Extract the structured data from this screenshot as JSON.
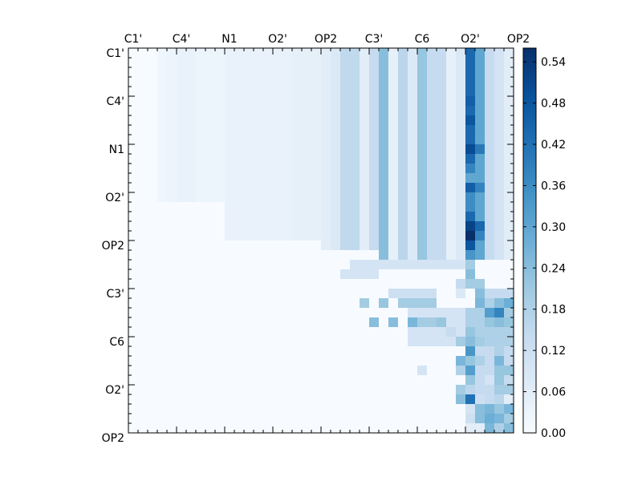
{
  "chart_data": {
    "type": "heatmap",
    "title": "",
    "xlabel": "",
    "ylabel": "",
    "colormap": "Blues",
    "n_rows": 40,
    "n_cols": 40,
    "row_tick_labels": [
      "C1'",
      "C4'",
      "N1",
      "O2'",
      "OP2",
      "C3'",
      "C6",
      "O2'",
      "OP2"
    ],
    "col_tick_labels": [
      "C1'",
      "C4'",
      "N1",
      "O2'",
      "OP2",
      "C3'",
      "C6",
      "O2'",
      "OP2"
    ],
    "colorbar": {
      "min": 0.0,
      "max": 0.56,
      "tick_values": [
        0.0,
        0.06,
        0.12,
        0.18,
        0.24,
        0.3,
        0.36,
        0.42,
        0.48,
        0.54
      ],
      "tick_labels": [
        "0.00",
        "0.06",
        "0.12",
        "0.18",
        "0.24",
        "0.30",
        "0.36",
        "0.42",
        "0.48",
        "0.54"
      ]
    },
    "blocks": [
      {
        "r": [
          0,
          16
        ],
        "c": [
          3,
          4
        ],
        "v": 0.02
      },
      {
        "r": [
          0,
          16
        ],
        "c": [
          4,
          5
        ],
        "v": 0.03
      },
      {
        "r": [
          0,
          16
        ],
        "c": [
          5,
          7
        ],
        "v": 0.04
      },
      {
        "r": [
          0,
          16
        ],
        "c": [
          7,
          10
        ],
        "v": 0.03
      },
      {
        "r": [
          0,
          20
        ],
        "c": [
          10,
          17
        ],
        "v": 0.04
      },
      {
        "r": [
          0,
          20
        ],
        "c": [
          17,
          20
        ],
        "v": 0.05
      },
      {
        "r": [
          0,
          21
        ],
        "c": [
          20,
          21
        ],
        "v": 0.06
      },
      {
        "r": [
          0,
          21
        ],
        "c": [
          21,
          22
        ],
        "v": 0.08
      },
      {
        "r": [
          0,
          21
        ],
        "c": [
          22,
          24
        ],
        "v": 0.15
      },
      {
        "r": [
          0,
          21
        ],
        "c": [
          24,
          25
        ],
        "v": 0.06
      },
      {
        "r": [
          0,
          21
        ],
        "c": [
          25,
          26
        ],
        "v": 0.14
      },
      {
        "r": [
          0,
          22
        ],
        "c": [
          26,
          27
        ],
        "v": 0.24
      },
      {
        "r": [
          0,
          22
        ],
        "c": [
          27,
          28
        ],
        "v": 0.05
      },
      {
        "r": [
          0,
          22
        ],
        "c": [
          28,
          29
        ],
        "v": 0.16
      },
      {
        "r": [
          0,
          22
        ],
        "c": [
          29,
          30
        ],
        "v": 0.08
      },
      {
        "r": [
          0,
          22
        ],
        "c": [
          30,
          31
        ],
        "v": 0.22
      },
      {
        "r": [
          0,
          22
        ],
        "c": [
          31,
          33
        ],
        "v": 0.14
      },
      {
        "r": [
          0,
          22
        ],
        "c": [
          33,
          34
        ],
        "v": 0.05
      },
      {
        "r": [
          0,
          22
        ],
        "c": [
          34,
          35
        ],
        "v": 0.08
      },
      {
        "r": [
          0,
          22
        ],
        "c": [
          35,
          36
        ],
        "v": 0.44
      },
      {
        "r": [
          0,
          22
        ],
        "c": [
          36,
          37
        ],
        "v": 0.3
      },
      {
        "r": [
          0,
          22
        ],
        "c": [
          37,
          38
        ],
        "v": 0.14
      },
      {
        "r": [
          0,
          22
        ],
        "c": [
          38,
          39
        ],
        "v": 0.1
      },
      {
        "r": [
          0,
          22
        ],
        "c": [
          39,
          40
        ],
        "v": 0.06
      },
      {
        "r": [
          22,
          23
        ],
        "c": [
          23,
          35
        ],
        "v": 0.1
      },
      {
        "r": [
          23,
          24
        ],
        "c": [
          22,
          26
        ],
        "v": 0.1
      },
      {
        "r": [
          25,
          26
        ],
        "c": [
          27,
          32
        ],
        "v": 0.12
      },
      {
        "r": [
          25,
          26
        ],
        "c": [
          36,
          40
        ],
        "v": 0.14
      },
      {
        "r": [
          26,
          27
        ],
        "c": [
          24,
          25
        ],
        "v": 0.2
      },
      {
        "r": [
          26,
          27
        ],
        "c": [
          26,
          27
        ],
        "v": 0.22
      },
      {
        "r": [
          26,
          27
        ],
        "c": [
          28,
          32
        ],
        "v": 0.2
      },
      {
        "r": [
          26,
          27
        ],
        "c": [
          37,
          40
        ],
        "v": 0.28
      },
      {
        "r": [
          27,
          31
        ],
        "c": [
          29,
          35
        ],
        "v": 0.1
      },
      {
        "r": [
          27,
          31
        ],
        "c": [
          35,
          40
        ],
        "v": 0.18
      },
      {
        "r": [
          31,
          36
        ],
        "c": [
          35,
          40
        ],
        "v": 0.14
      },
      {
        "r": [
          32,
          33
        ],
        "c": [
          35,
          36
        ],
        "v": 0.22
      },
      {
        "r": [
          36,
          40
        ],
        "c": [
          35,
          40
        ],
        "v": 0.06
      },
      {
        "r": [
          33,
          34
        ],
        "c": [
          38,
          40
        ],
        "v": 0.22
      },
      {
        "r": [
          34,
          35
        ],
        "c": [
          38,
          39
        ],
        "v": 0.22
      },
      {
        "r": [
          35,
          36
        ],
        "c": [
          38,
          40
        ],
        "v": 0.2
      }
    ],
    "cells": [
      [
        5,
        35,
        0.46
      ],
      [
        7,
        35,
        0.48
      ],
      [
        10,
        35,
        0.5
      ],
      [
        10,
        36,
        0.4
      ],
      [
        14,
        36,
        0.38
      ],
      [
        15,
        35,
        0.36
      ],
      [
        12,
        35,
        0.38
      ],
      [
        13,
        35,
        0.3
      ],
      [
        14,
        35,
        0.46
      ],
      [
        16,
        35,
        0.36
      ],
      [
        17,
        35,
        0.44
      ],
      [
        18,
        35,
        0.52
      ],
      [
        19,
        35,
        0.56
      ],
      [
        20,
        35,
        0.48
      ],
      [
        18,
        36,
        0.44
      ],
      [
        19,
        36,
        0.38
      ],
      [
        20,
        36,
        0.3
      ],
      [
        21,
        35,
        0.34
      ],
      [
        22,
        35,
        0.2
      ],
      [
        23,
        35,
        0.24
      ],
      [
        24,
        35,
        0.2
      ],
      [
        24,
        36,
        0.2
      ],
      [
        25,
        36,
        0.24
      ],
      [
        26,
        36,
        0.26
      ],
      [
        26,
        37,
        0.18
      ],
      [
        26,
        38,
        0.24
      ],
      [
        24,
        34,
        0.14
      ],
      [
        25,
        34,
        0.08
      ],
      [
        27,
        37,
        0.32
      ],
      [
        27,
        38,
        0.38
      ],
      [
        27,
        39,
        0.2
      ],
      [
        27,
        40,
        0.14
      ],
      [
        28,
        25,
        0.24
      ],
      [
        28,
        27,
        0.24
      ],
      [
        28,
        29,
        0.26
      ],
      [
        28,
        30,
        0.2
      ],
      [
        28,
        31,
        0.2
      ],
      [
        28,
        32,
        0.22
      ],
      [
        28,
        37,
        0.22
      ],
      [
        28,
        38,
        0.24
      ],
      [
        28,
        39,
        0.22
      ],
      [
        29,
        33,
        0.14
      ],
      [
        29,
        35,
        0.22
      ],
      [
        30,
        34,
        0.2
      ],
      [
        30,
        35,
        0.24
      ],
      [
        30,
        36,
        0.2
      ],
      [
        31,
        35,
        0.34
      ],
      [
        31,
        37,
        0.14
      ],
      [
        31,
        38,
        0.18
      ],
      [
        32,
        34,
        0.26
      ],
      [
        32,
        36,
        0.18
      ],
      [
        32,
        38,
        0.26
      ],
      [
        33,
        30,
        0.1
      ],
      [
        33,
        34,
        0.18
      ],
      [
        33,
        35,
        0.32
      ],
      [
        34,
        35,
        0.22
      ],
      [
        34,
        36,
        0.14
      ],
      [
        34,
        37,
        0.1
      ],
      [
        35,
        34,
        0.2
      ],
      [
        35,
        35,
        0.16
      ],
      [
        35,
        36,
        0.14
      ],
      [
        36,
        34,
        0.24
      ],
      [
        36,
        35,
        0.42
      ],
      [
        36,
        36,
        0.12
      ],
      [
        36,
        37,
        0.14
      ],
      [
        36,
        38,
        0.16
      ],
      [
        37,
        35,
        0.1
      ],
      [
        37,
        36,
        0.24
      ],
      [
        37,
        37,
        0.26
      ],
      [
        37,
        38,
        0.22
      ],
      [
        37,
        39,
        0.26
      ],
      [
        38,
        35,
        0.12
      ],
      [
        38,
        36,
        0.24
      ],
      [
        38,
        37,
        0.28
      ],
      [
        38,
        38,
        0.26
      ],
      [
        38,
        39,
        0.2
      ],
      [
        39,
        37,
        0.26
      ],
      [
        39,
        38,
        0.18
      ],
      [
        39,
        39,
        0.24
      ],
      [
        39,
        40,
        0.26
      ]
    ]
  }
}
